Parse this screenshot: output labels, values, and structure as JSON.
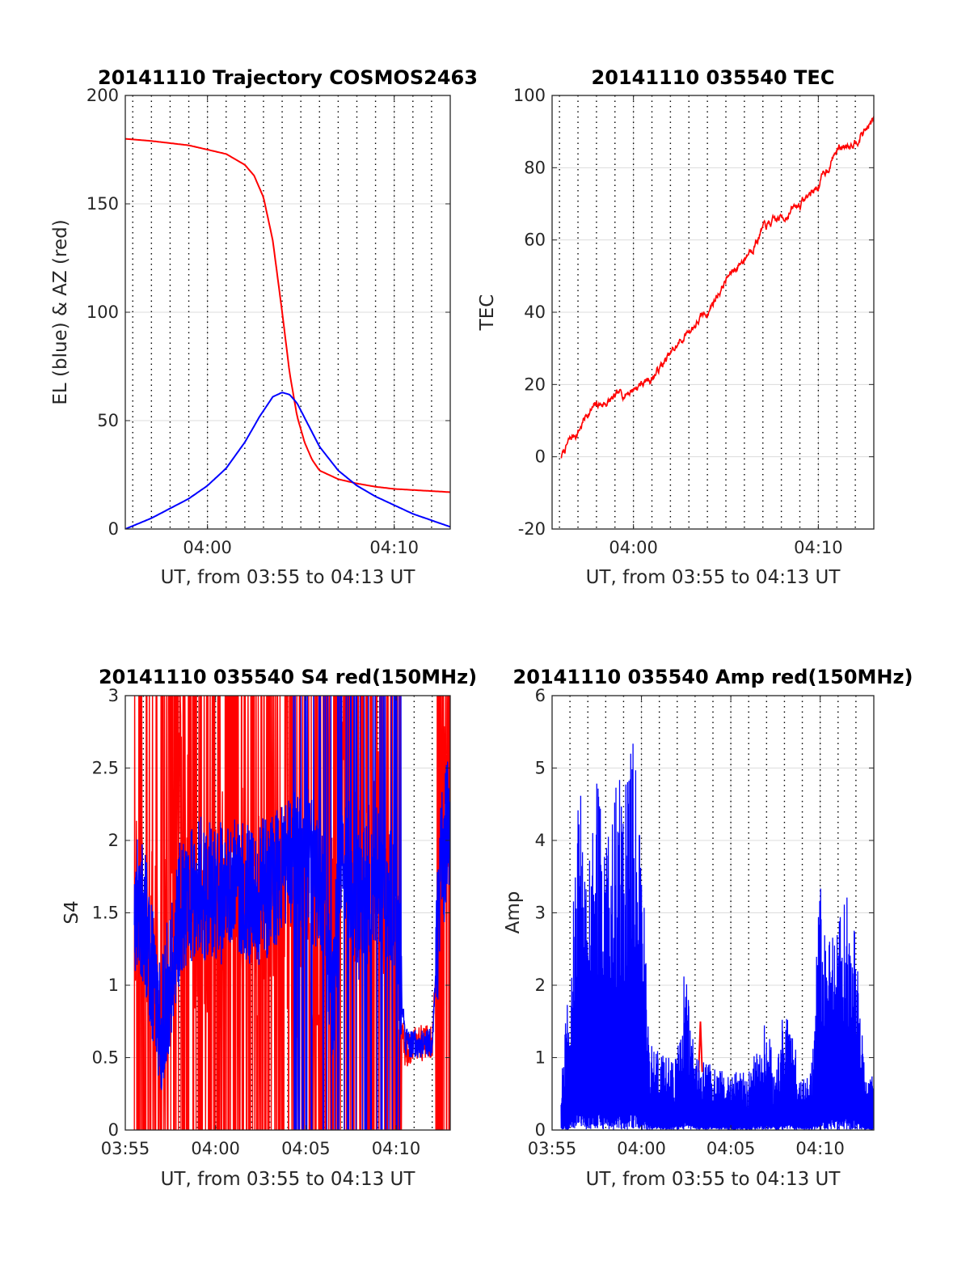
{
  "chart_data": [
    {
      "type": "line",
      "title": "20141110 Trajectory COSMOS2463",
      "xlabel": "UT, from 03:55 to 04:13 UT",
      "ylabel": "EL (blue) & AZ (red)",
      "x_unit": "minutes past 03:55 UT",
      "xlim": [
        0.6,
        18.0
      ],
      "ylim": [
        0,
        200
      ],
      "xticks": [
        5,
        15
      ],
      "xtick_labels": [
        "04:00",
        "04:10"
      ],
      "yticks": [
        0,
        50,
        100,
        150,
        200
      ],
      "ytick_labels": [
        "0",
        "50",
        "100",
        "150",
        "200"
      ],
      "grid": true,
      "minute_gridlines": true,
      "series": [
        {
          "color": "#ff0000",
          "x": [
            0.6,
            2,
            4,
            6,
            7,
            7.5,
            8,
            8.5,
            9,
            9.4,
            9.8,
            10.2,
            10.6,
            11,
            12,
            13,
            14,
            15,
            16,
            17,
            18
          ],
          "values": [
            180,
            179,
            177,
            173,
            168,
            163,
            153,
            133,
            100,
            72,
            52,
            40,
            32,
            27,
            23,
            21,
            19.5,
            18.5,
            18,
            17.5,
            17
          ]
        },
        {
          "color": "#0000ff",
          "x": [
            0.6,
            2,
            4,
            5,
            6,
            7,
            7.8,
            8.5,
            9,
            9.4,
            9.8,
            10.4,
            11,
            12,
            13,
            14,
            15,
            16,
            17,
            18
          ],
          "values": [
            0,
            5,
            14,
            20,
            28,
            40,
            52,
            61,
            63,
            62,
            58,
            48,
            38,
            27,
            20,
            15,
            11,
            7,
            4,
            1
          ]
        }
      ]
    },
    {
      "type": "line",
      "title": "20141110 035540 TEC",
      "xlabel": "UT, from 03:55 to 04:13 UT",
      "ylabel": "TEC",
      "x_unit": "minutes past 03:55 UT",
      "xlim": [
        0.6,
        18.0
      ],
      "ylim": [
        -20,
        100
      ],
      "xticks": [
        5,
        15
      ],
      "xtick_labels": [
        "04:00",
        "04:10"
      ],
      "yticks": [
        -20,
        0,
        20,
        40,
        60,
        80,
        100
      ],
      "ytick_labels": [
        "-20",
        "0",
        "20",
        "40",
        "60",
        "80",
        "100"
      ],
      "grid": true,
      "minute_gridlines": true,
      "series": [
        {
          "color": "#ff0000",
          "x": [
            1.1,
            1.5,
            2,
            2.5,
            3,
            4,
            5,
            6,
            7,
            8,
            9,
            10,
            11,
            12,
            13,
            14,
            15,
            16,
            17,
            18
          ],
          "values": [
            0,
            4,
            7,
            12,
            14,
            16,
            19,
            22,
            28,
            35,
            40,
            49,
            55,
            63,
            66,
            70,
            75,
            85,
            88,
            93
          ]
        }
      ]
    },
    {
      "type": "line",
      "title": "20141110 035540 S4 red(150MHz)",
      "xlabel": "UT, from 03:55 to 04:13 UT",
      "ylabel": "S4",
      "x_unit": "minutes past 03:55 UT",
      "xlim": [
        0,
        18.0
      ],
      "ylim": [
        0,
        3
      ],
      "xticks": [
        0,
        5,
        10,
        15
      ],
      "xtick_labels": [
        "03:55",
        "04:00",
        "04:05",
        "04:10"
      ],
      "yticks": [
        0,
        0.5,
        1,
        1.5,
        2,
        2.5,
        3
      ],
      "ytick_labels": [
        "0",
        "0.5",
        "1",
        "1.5",
        "2",
        "2.5",
        "3"
      ],
      "grid": true,
      "minute_gridlines": true,
      "series": [
        {
          "color": "#ff0000",
          "style": "dense noisy signal, frequently saturating 0-3",
          "x": [
            0.5,
            1,
            2,
            3,
            4,
            5,
            6,
            7,
            8,
            9,
            10,
            11,
            12,
            13,
            14,
            15,
            15.5,
            16,
            17,
            17.5,
            18
          ],
          "values": [
            1.5,
            1.8,
            0.8,
            2.5,
            1.2,
            1.5,
            2,
            1.4,
            1.6,
            1.5,
            0.9,
            1.5,
            2.5,
            1.5,
            2,
            1.2,
            0.55,
            0.6,
            0.6,
            2,
            2.5
          ]
        },
        {
          "color": "#0000ff",
          "style": "dense noisy signal",
          "x": [
            0.5,
            1,
            2,
            3,
            4,
            5,
            6,
            7,
            8,
            9,
            10,
            11,
            11.5,
            12,
            13,
            14,
            15,
            15.5,
            16,
            17,
            17.5,
            18
          ],
          "values": [
            1.6,
            1.5,
            0.7,
            1.5,
            1.7,
            1.6,
            1.7,
            1.6,
            1.7,
            1.8,
            1.9,
            1.6,
            0.9,
            2,
            1.5,
            1.8,
            1.5,
            0.6,
            0.6,
            0.6,
            1.8,
            2.2
          ]
        }
      ]
    },
    {
      "type": "line",
      "title": "20141110 035540 Amp red(150MHz)",
      "xlabel": "UT, from 03:55 to 04:13 UT",
      "ylabel": "Amp",
      "x_unit": "minutes past 03:55 UT",
      "xlim": [
        0,
        18.0
      ],
      "ylim": [
        0,
        6
      ],
      "xticks": [
        0,
        5,
        10,
        15
      ],
      "xtick_labels": [
        "03:55",
        "04:00",
        "04:05",
        "04:10"
      ],
      "yticks": [
        0,
        1,
        2,
        3,
        4,
        5,
        6
      ],
      "ytick_labels": [
        "0",
        "1",
        "2",
        "3",
        "4",
        "5",
        "6"
      ],
      "grid": true,
      "minute_gridlines": true,
      "series": [
        {
          "color": "#ff0000",
          "x": [
            8.2,
            8.3,
            8.4
          ],
          "values": [
            0.8,
            1.5,
            0.8
          ]
        },
        {
          "color": "#0000ff",
          "style": "dense noisy amplitude signal",
          "x": [
            0.5,
            1,
            1.5,
            2,
            2.5,
            3,
            3.5,
            4,
            4.5,
            5,
            5.5,
            6,
            7,
            7.4,
            8,
            9,
            10,
            11,
            12,
            12.5,
            13,
            14,
            14.5,
            15,
            15.5,
            16,
            16.5,
            17,
            17.5,
            18
          ],
          "values": [
            0.6,
            2.5,
            4.9,
            3.5,
            5.1,
            3.8,
            4.8,
            4.9,
            5.4,
            4.2,
            1.2,
            1.1,
            1.0,
            2.4,
            1.0,
            0.9,
            0.8,
            0.8,
            1.6,
            0.7,
            1.8,
            0.7,
            0.8,
            3.5,
            2.8,
            3.0,
            3.4,
            3.2,
            0.7,
            0.8
          ]
        }
      ]
    }
  ]
}
